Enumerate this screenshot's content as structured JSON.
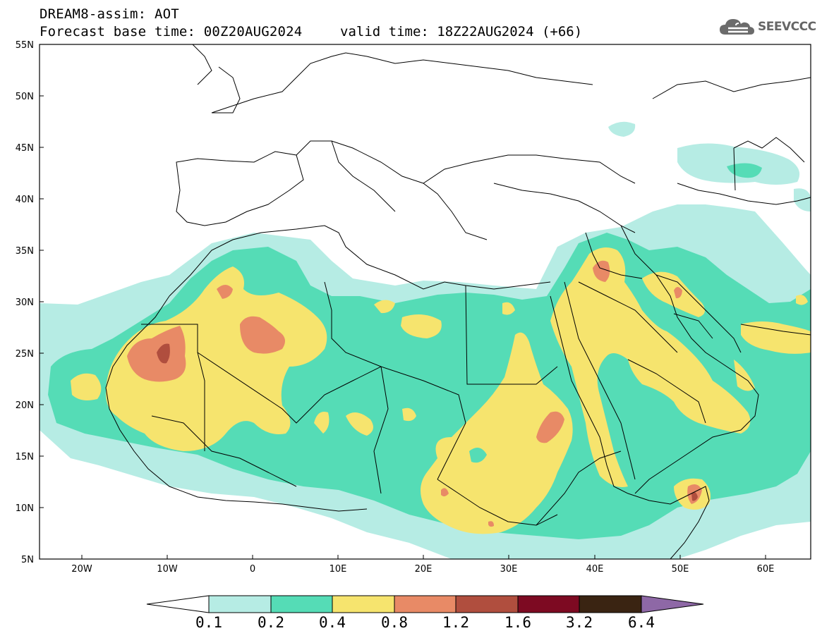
{
  "header": {
    "model_title": "DREAM8-assim: AOT",
    "base_time": "Forecast base time: 00Z20AUG2024",
    "valid_time": "valid time: 18Z22AUG2024 (+66)"
  },
  "logo": {
    "text": "SEEVCCC",
    "icon": "cloud-icon"
  },
  "axes": {
    "lat_labels": [
      "55N",
      "50N",
      "45N",
      "40N",
      "35N",
      "30N",
      "25N",
      "20N",
      "15N",
      "10N",
      "5N"
    ],
    "lon_labels": [
      "20W",
      "10W",
      "0",
      "10E",
      "20E",
      "30E",
      "40E",
      "50E",
      "60E"
    ]
  },
  "colorbar": {
    "labels": [
      "0.1",
      "0.2",
      "0.4",
      "0.8",
      "1.2",
      "1.6",
      "3.2",
      "6.4"
    ],
    "colors": [
      "#ffffff",
      "#b6ece4",
      "#55dcb6",
      "#f6e46e",
      "#e88a66",
      "#b04e3e",
      "#7d0a22",
      "#3a2412",
      "#8e68a6"
    ]
  },
  "palette": {
    "aot_01": "#b6ece4",
    "aot_02": "#55dcb6",
    "aot_04": "#f6e46e",
    "aot_08": "#e88a66",
    "aot_12": "#b04e3e"
  }
}
